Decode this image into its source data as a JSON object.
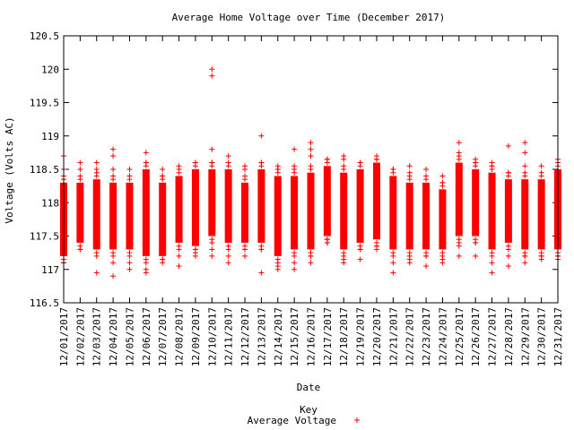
{
  "chart_data": {
    "type": "scatter",
    "title": "Average Home Voltage over Time (December 2017)",
    "xlabel": "Date",
    "ylabel": "Voltage (Volts AC)",
    "ylim": [
      116.5,
      120.5
    ],
    "yticks": [
      "116.5",
      "117",
      "117.5",
      "118",
      "118.5",
      "119",
      "119.5",
      "120",
      "120.5"
    ],
    "categories": [
      "12/01/2017",
      "12/02/2017",
      "12/03/2017",
      "12/04/2017",
      "12/05/2017",
      "12/06/2017",
      "12/07/2017",
      "12/08/2017",
      "12/09/2017",
      "12/10/2017",
      "12/11/2017",
      "12/12/2017",
      "12/13/2017",
      "12/14/2017",
      "12/15/2017",
      "12/16/2017",
      "12/17/2017",
      "12/18/2017",
      "12/19/2017",
      "12/20/2017",
      "12/21/2017",
      "12/22/2017",
      "12/23/2017",
      "12/24/2017",
      "12/25/2017",
      "12/26/2017",
      "12/27/2017",
      "12/28/2017",
      "12/29/2017",
      "12/30/2017",
      "12/31/2017"
    ],
    "series": [
      {
        "name": "Average Voltage",
        "color": "#ff0000",
        "marker": "plus",
        "days": [
          {
            "date": "12/01/2017",
            "low": 117.2,
            "high": 118.3,
            "outliers": [
              118.5,
              118.7,
              117.1
            ]
          },
          {
            "date": "12/02/2017",
            "low": 117.4,
            "high": 118.3,
            "outliers": [
              118.6,
              118.5,
              117.3
            ]
          },
          {
            "date": "12/03/2017",
            "low": 117.3,
            "high": 118.35,
            "outliers": [
              118.6,
              118.5,
              116.95
            ]
          },
          {
            "date": "12/04/2017",
            "low": 117.3,
            "high": 118.3,
            "outliers": [
              118.8,
              118.7,
              118.5,
              117.1,
              116.9
            ]
          },
          {
            "date": "12/05/2017",
            "low": 117.3,
            "high": 118.3,
            "outliers": [
              118.5,
              118.4,
              117.1,
              117.0
            ]
          },
          {
            "date": "12/06/2017",
            "low": 117.2,
            "high": 118.5,
            "outliers": [
              118.75,
              118.6,
              117.0,
              116.95
            ]
          },
          {
            "date": "12/07/2017",
            "low": 117.2,
            "high": 118.3,
            "outliers": [
              118.5,
              118.4,
              117.15
            ]
          },
          {
            "date": "12/08/2017",
            "low": 117.4,
            "high": 118.4,
            "outliers": [
              118.55,
              117.2,
              117.05
            ]
          },
          {
            "date": "12/09/2017",
            "low": 117.35,
            "high": 118.5,
            "outliers": [
              118.6,
              117.3,
              117.2
            ]
          },
          {
            "date": "12/10/2017",
            "low": 117.5,
            "high": 118.5,
            "outliers": [
              120.0,
              119.9,
              118.8,
              118.6,
              117.3,
              117.2
            ]
          },
          {
            "date": "12/11/2017",
            "low": 117.4,
            "high": 118.5,
            "outliers": [
              118.7,
              117.2,
              117.1
            ]
          },
          {
            "date": "12/12/2017",
            "low": 117.4,
            "high": 118.3,
            "outliers": [
              118.55,
              118.5,
              117.3,
              117.2
            ]
          },
          {
            "date": "12/13/2017",
            "low": 117.4,
            "high": 118.5,
            "outliers": [
              119.0,
              118.6,
              117.3,
              116.95
            ]
          },
          {
            "date": "12/14/2017",
            "low": 117.2,
            "high": 118.4,
            "outliers": [
              118.55,
              118.5,
              117.05,
              117.0
            ]
          },
          {
            "date": "12/15/2017",
            "low": 117.3,
            "high": 118.4,
            "outliers": [
              118.8,
              118.55,
              117.1,
              117.0
            ]
          },
          {
            "date": "12/16/2017",
            "low": 117.3,
            "high": 118.45,
            "outliers": [
              118.9,
              118.8,
              118.7,
              117.2,
              117.1
            ]
          },
          {
            "date": "12/17/2017",
            "low": 117.5,
            "high": 118.55,
            "outliers": [
              118.65,
              117.45,
              117.4
            ]
          },
          {
            "date": "12/18/2017",
            "low": 117.3,
            "high": 118.45,
            "outliers": [
              118.7,
              118.65,
              117.15,
              117.1
            ]
          },
          {
            "date": "12/19/2017",
            "low": 117.4,
            "high": 118.5,
            "outliers": [
              118.6,
              117.3,
              117.15
            ]
          },
          {
            "date": "12/20/2017",
            "low": 117.45,
            "high": 118.6,
            "outliers": [
              118.65,
              117.35,
              117.3
            ]
          },
          {
            "date": "12/21/2017",
            "low": 117.3,
            "high": 118.4,
            "outliers": [
              118.5,
              117.1,
              116.95
            ]
          },
          {
            "date": "12/22/2017",
            "low": 117.3,
            "high": 118.3,
            "outliers": [
              118.55,
              118.45,
              117.15,
              117.1
            ]
          },
          {
            "date": "12/23/2017",
            "low": 117.3,
            "high": 118.3,
            "outliers": [
              118.5,
              117.2,
              117.05
            ]
          },
          {
            "date": "12/24/2017",
            "low": 117.3,
            "high": 118.2,
            "outliers": [
              118.4,
              118.3,
              117.15,
              117.1
            ]
          },
          {
            "date": "12/25/2017",
            "low": 117.5,
            "high": 118.6,
            "outliers": [
              118.9,
              118.75,
              117.35,
              117.2
            ]
          },
          {
            "date": "12/26/2017",
            "low": 117.5,
            "high": 118.5,
            "outliers": [
              118.65,
              118.6,
              117.4,
              117.2
            ]
          },
          {
            "date": "12/27/2017",
            "low": 117.3,
            "high": 118.45,
            "outliers": [
              118.6,
              118.55,
              117.1,
              116.95
            ]
          },
          {
            "date": "12/28/2017",
            "low": 117.4,
            "high": 118.35,
            "outliers": [
              118.85,
              118.45,
              117.2,
              117.05
            ]
          },
          {
            "date": "12/29/2017",
            "low": 117.3,
            "high": 118.35,
            "outliers": [
              118.9,
              118.75,
              118.55,
              117.2,
              117.1
            ]
          },
          {
            "date": "12/30/2017",
            "low": 117.3,
            "high": 118.35,
            "outliers": [
              118.55,
              117.2,
              117.15
            ]
          },
          {
            "date": "12/31/2017",
            "low": 117.3,
            "high": 118.5,
            "outliers": [
              118.65,
              117.2,
              117.15
            ]
          }
        ]
      }
    ],
    "grid": false,
    "legend": {
      "title": "Key",
      "position": "bottom-center"
    }
  }
}
